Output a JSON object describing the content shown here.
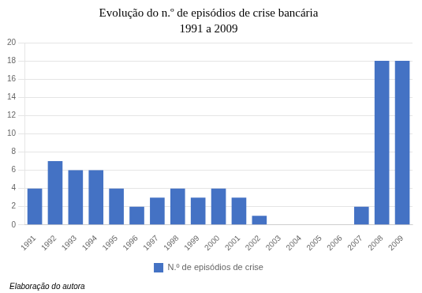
{
  "chart_data": {
    "type": "bar",
    "title": "Evolução do n.º de episódios de crise bancária",
    "subtitle": "1991 a 2009",
    "categories": [
      "1991",
      "1992",
      "1993",
      "1994",
      "1995",
      "1996",
      "1997",
      "1998",
      "1999",
      "2000",
      "2001",
      "2002",
      "2003",
      "2004",
      "2005",
      "2006",
      "2007",
      "2008",
      "2009"
    ],
    "series": [
      {
        "name": "N.º de episódios de crise",
        "color": "#4472C4",
        "values": [
          4,
          7,
          6,
          6,
          4,
          2,
          3,
          4,
          3,
          4,
          3,
          1,
          0,
          0,
          0,
          0,
          2,
          18,
          18
        ]
      }
    ],
    "ylim": [
      0,
      20
    ],
    "yticks": [
      0,
      2,
      4,
      6,
      8,
      10,
      12,
      14,
      16,
      18,
      20
    ],
    "grid": true,
    "legend": "bottom",
    "footnote": "Elaboração do autora"
  }
}
